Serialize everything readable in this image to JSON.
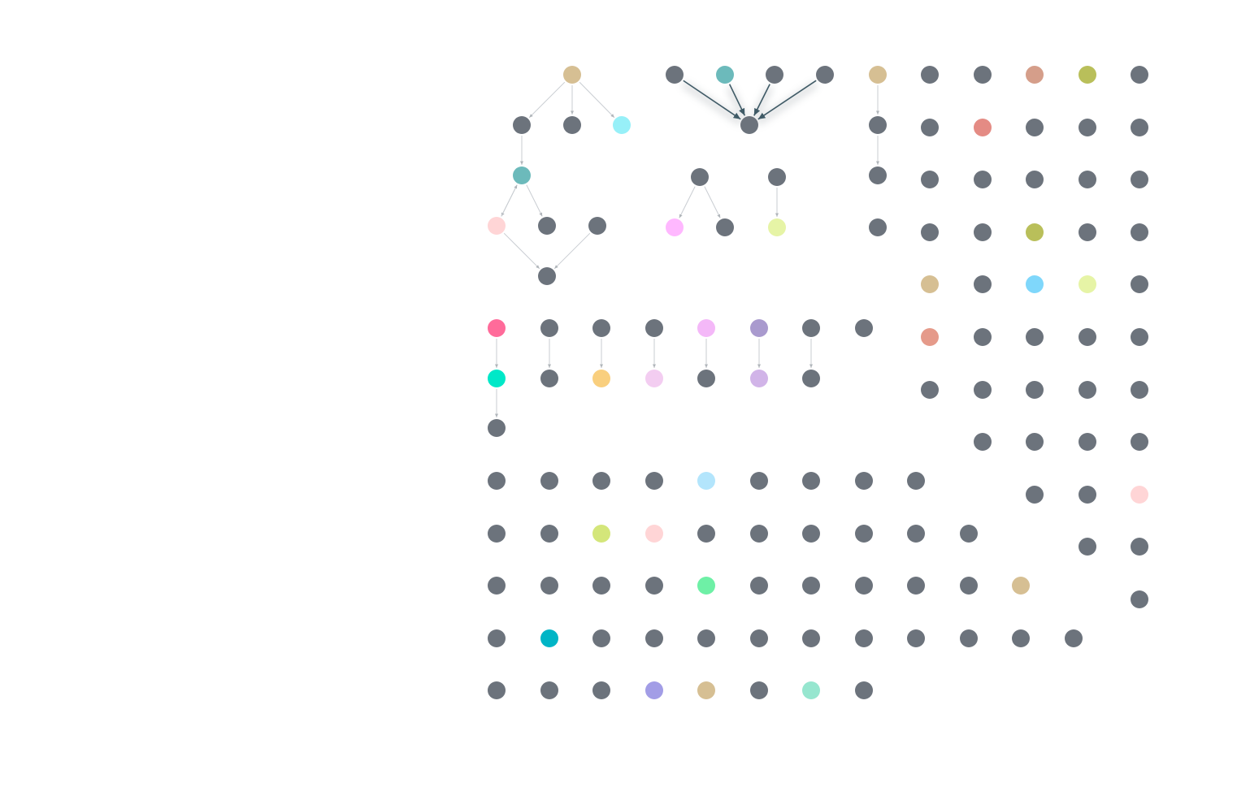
{
  "colors": {
    "default_node": "#6c737c",
    "edge": "#c9cdd2",
    "edge_highlight": "#3f5a66"
  },
  "nodes": [
    {
      "id": "a0",
      "color": "#d6bf93"
    },
    {
      "id": "a1",
      "color": "#6c737c"
    },
    {
      "id": "a2",
      "color": "#6c737c"
    },
    {
      "id": "a3",
      "color": "#97f0f8"
    },
    {
      "id": "a4",
      "color": "#6cbabb"
    },
    {
      "id": "a5",
      "color": "#ffd5d6"
    },
    {
      "id": "a6",
      "color": "#6c737c"
    },
    {
      "id": "a7",
      "color": "#6c737c"
    },
    {
      "id": "a8",
      "color": "#6c737c"
    },
    {
      "id": "b0",
      "color": "#6c737c"
    },
    {
      "id": "b1",
      "color": "#6cbabb"
    },
    {
      "id": "b2",
      "color": "#6c737c"
    },
    {
      "id": "b3",
      "color": "#6c737c"
    },
    {
      "id": "b4",
      "color": "#6c737c"
    },
    {
      "id": "c0",
      "color": "#6c737c"
    },
    {
      "id": "c1",
      "color": "#ffb8ff"
    },
    {
      "id": "c2",
      "color": "#6c737c"
    },
    {
      "id": "d0",
      "color": "#6c737c"
    },
    {
      "id": "d1",
      "color": "#e6f4a6"
    },
    {
      "id": "e0",
      "color": "#d6bf93"
    },
    {
      "id": "e1",
      "color": "#6c737c"
    },
    {
      "id": "e2",
      "color": "#6c737c"
    },
    {
      "id": "e3",
      "color": "#6c737c"
    },
    {
      "id": "f0",
      "color": "#ff6b9a"
    },
    {
      "id": "f1",
      "color": "#00e8c8"
    },
    {
      "id": "f2",
      "color": "#6c737c"
    },
    {
      "id": "g0",
      "color": "#6c737c"
    },
    {
      "id": "g1",
      "color": "#6c737c"
    },
    {
      "id": "h0",
      "color": "#6c737c"
    },
    {
      "id": "h1",
      "color": "#f9cf7e"
    },
    {
      "id": "i0",
      "color": "#6c737c"
    },
    {
      "id": "i1",
      "color": "#f3cdf1"
    },
    {
      "id": "j0",
      "color": "#f4b8f8"
    },
    {
      "id": "j1",
      "color": "#6c737c"
    },
    {
      "id": "k0",
      "color": "#a99ace"
    },
    {
      "id": "k1",
      "color": "#d1b4e8"
    },
    {
      "id": "l0",
      "color": "#6c737c"
    },
    {
      "id": "l1",
      "color": "#6c737c"
    },
    {
      "id": "m0",
      "color": "#6c737c"
    },
    {
      "id": "r1_1",
      "color": "#6c737c"
    },
    {
      "id": "r1_2",
      "color": "#6c737c"
    },
    {
      "id": "r1_3",
      "color": "#d59e8a"
    },
    {
      "id": "r1_4",
      "color": "#b9bf5a"
    },
    {
      "id": "r1_5",
      "color": "#6c737c"
    },
    {
      "id": "r2_1",
      "color": "#6c737c"
    },
    {
      "id": "r2_2",
      "color": "#e48b84"
    },
    {
      "id": "r2_3",
      "color": "#6c737c"
    },
    {
      "id": "r2_4",
      "color": "#6c737c"
    },
    {
      "id": "r2_5",
      "color": "#6c737c"
    },
    {
      "id": "r3_1",
      "color": "#6c737c"
    },
    {
      "id": "r3_2",
      "color": "#6c737c"
    },
    {
      "id": "r3_3",
      "color": "#6c737c"
    },
    {
      "id": "r3_4",
      "color": "#6c737c"
    },
    {
      "id": "r3_5",
      "color": "#6c737c"
    },
    {
      "id": "r4_1",
      "color": "#6c737c"
    },
    {
      "id": "r4_2",
      "color": "#6c737c"
    },
    {
      "id": "r4_3",
      "color": "#b9bf5a"
    },
    {
      "id": "r4_4",
      "color": "#6c737c"
    },
    {
      "id": "r4_5",
      "color": "#6c737c"
    },
    {
      "id": "r5_1",
      "color": "#d6bf93"
    },
    {
      "id": "r5_2",
      "color": "#6c737c"
    },
    {
      "id": "r5_3",
      "color": "#7fd7fb"
    },
    {
      "id": "r5_4",
      "color": "#e6f4a6"
    },
    {
      "id": "r5_5",
      "color": "#6c737c"
    },
    {
      "id": "r6_1",
      "color": "#e59a8a"
    },
    {
      "id": "r6_2",
      "color": "#6c737c"
    },
    {
      "id": "r6_3",
      "color": "#6c737c"
    },
    {
      "id": "r6_4",
      "color": "#6c737c"
    },
    {
      "id": "r6_5",
      "color": "#6c737c"
    },
    {
      "id": "r7_1",
      "color": "#6c737c"
    },
    {
      "id": "r7_2",
      "color": "#6c737c"
    },
    {
      "id": "r7_3",
      "color": "#6c737c"
    },
    {
      "id": "r7_4",
      "color": "#6c737c"
    },
    {
      "id": "r7_5",
      "color": "#6c737c"
    },
    {
      "id": "r8_2",
      "color": "#6c737c"
    },
    {
      "id": "r8_3",
      "color": "#6c737c"
    },
    {
      "id": "r8_4",
      "color": "#6c737c"
    },
    {
      "id": "r8_5",
      "color": "#6c737c"
    },
    {
      "id": "r9_3",
      "color": "#6c737c"
    },
    {
      "id": "r9_4",
      "color": "#6c737c"
    },
    {
      "id": "r9_5",
      "color": "#ffd5d6"
    },
    {
      "id": "r10_4",
      "color": "#6c737c"
    },
    {
      "id": "r10_5",
      "color": "#6c737c"
    },
    {
      "id": "r11_5",
      "color": "#6c737c"
    },
    {
      "id": "s1_1",
      "color": "#6c737c"
    },
    {
      "id": "s1_2",
      "color": "#6c737c"
    },
    {
      "id": "s1_3",
      "color": "#6c737c"
    },
    {
      "id": "s1_4",
      "color": "#6c737c"
    },
    {
      "id": "s1_5",
      "color": "#b3e5fc"
    },
    {
      "id": "s1_6",
      "color": "#6c737c"
    },
    {
      "id": "s1_7",
      "color": "#6c737c"
    },
    {
      "id": "s1_8",
      "color": "#6c737c"
    },
    {
      "id": "s1_9",
      "color": "#6c737c"
    },
    {
      "id": "s2_1",
      "color": "#6c737c"
    },
    {
      "id": "s2_2",
      "color": "#6c737c"
    },
    {
      "id": "s2_3",
      "color": "#d4e67a"
    },
    {
      "id": "s2_4",
      "color": "#ffd5d6"
    },
    {
      "id": "s2_5",
      "color": "#6c737c"
    },
    {
      "id": "s2_6",
      "color": "#6c737c"
    },
    {
      "id": "s2_7",
      "color": "#6c737c"
    },
    {
      "id": "s2_8",
      "color": "#6c737c"
    },
    {
      "id": "s2_9",
      "color": "#6c737c"
    },
    {
      "id": "s2_10",
      "color": "#6c737c"
    },
    {
      "id": "s3_1",
      "color": "#6c737c"
    },
    {
      "id": "s3_2",
      "color": "#6c737c"
    },
    {
      "id": "s3_3",
      "color": "#6c737c"
    },
    {
      "id": "s3_4",
      "color": "#6c737c"
    },
    {
      "id": "s3_5",
      "color": "#6ef0a6"
    },
    {
      "id": "s3_6",
      "color": "#6c737c"
    },
    {
      "id": "s3_7",
      "color": "#6c737c"
    },
    {
      "id": "s3_8",
      "color": "#6c737c"
    },
    {
      "id": "s3_9",
      "color": "#6c737c"
    },
    {
      "id": "s3_10",
      "color": "#6c737c"
    },
    {
      "id": "s3_11",
      "color": "#d6bf93"
    },
    {
      "id": "s4_1",
      "color": "#6c737c"
    },
    {
      "id": "s4_2",
      "color": "#00b5c6"
    },
    {
      "id": "s4_3",
      "color": "#6c737c"
    },
    {
      "id": "s4_4",
      "color": "#6c737c"
    },
    {
      "id": "s4_5",
      "color": "#6c737c"
    },
    {
      "id": "s4_6",
      "color": "#6c737c"
    },
    {
      "id": "s4_7",
      "color": "#6c737c"
    },
    {
      "id": "s4_8",
      "color": "#6c737c"
    },
    {
      "id": "s4_9",
      "color": "#6c737c"
    },
    {
      "id": "s4_10",
      "color": "#6c737c"
    },
    {
      "id": "s4_11",
      "color": "#6c737c"
    },
    {
      "id": "s4_12",
      "color": "#6c737c"
    },
    {
      "id": "s5_1",
      "color": "#6c737c"
    },
    {
      "id": "s5_2",
      "color": "#6c737c"
    },
    {
      "id": "s5_3",
      "color": "#6c737c"
    },
    {
      "id": "s5_4",
      "color": "#a29de6"
    },
    {
      "id": "s5_5",
      "color": "#d6bf93"
    },
    {
      "id": "s5_6",
      "color": "#6c737c"
    },
    {
      "id": "s5_7",
      "color": "#96e6cf"
    },
    {
      "id": "s5_8",
      "color": "#6c737c"
    }
  ],
  "edges": [
    {
      "from": "a0",
      "to": "a1"
    },
    {
      "from": "a0",
      "to": "a2"
    },
    {
      "from": "a0",
      "to": "a3"
    },
    {
      "from": "a1",
      "to": "a4"
    },
    {
      "from": "a4",
      "to": "a5"
    },
    {
      "from": "a5",
      "to": "a4"
    },
    {
      "from": "a4",
      "to": "a6"
    },
    {
      "from": "a5",
      "to": "a8"
    },
    {
      "from": "a7",
      "to": "a8"
    },
    {
      "from": "b0",
      "to": "b4",
      "highlight": true
    },
    {
      "from": "b1",
      "to": "b4",
      "highlight": true
    },
    {
      "from": "b2",
      "to": "b4",
      "highlight": true
    },
    {
      "from": "b3",
      "to": "b4",
      "highlight": true
    },
    {
      "from": "c0",
      "to": "c1"
    },
    {
      "from": "c0",
      "to": "c2"
    },
    {
      "from": "d0",
      "to": "d1"
    },
    {
      "from": "e0",
      "to": "e1"
    },
    {
      "from": "e1",
      "to": "e2"
    },
    {
      "from": "f0",
      "to": "f1"
    },
    {
      "from": "f1",
      "to": "f2"
    },
    {
      "from": "g0",
      "to": "g1"
    },
    {
      "from": "h0",
      "to": "h1"
    },
    {
      "from": "i0",
      "to": "i1"
    },
    {
      "from": "j0",
      "to": "j1"
    },
    {
      "from": "k0",
      "to": "k1"
    },
    {
      "from": "l0",
      "to": "l1"
    }
  ]
}
